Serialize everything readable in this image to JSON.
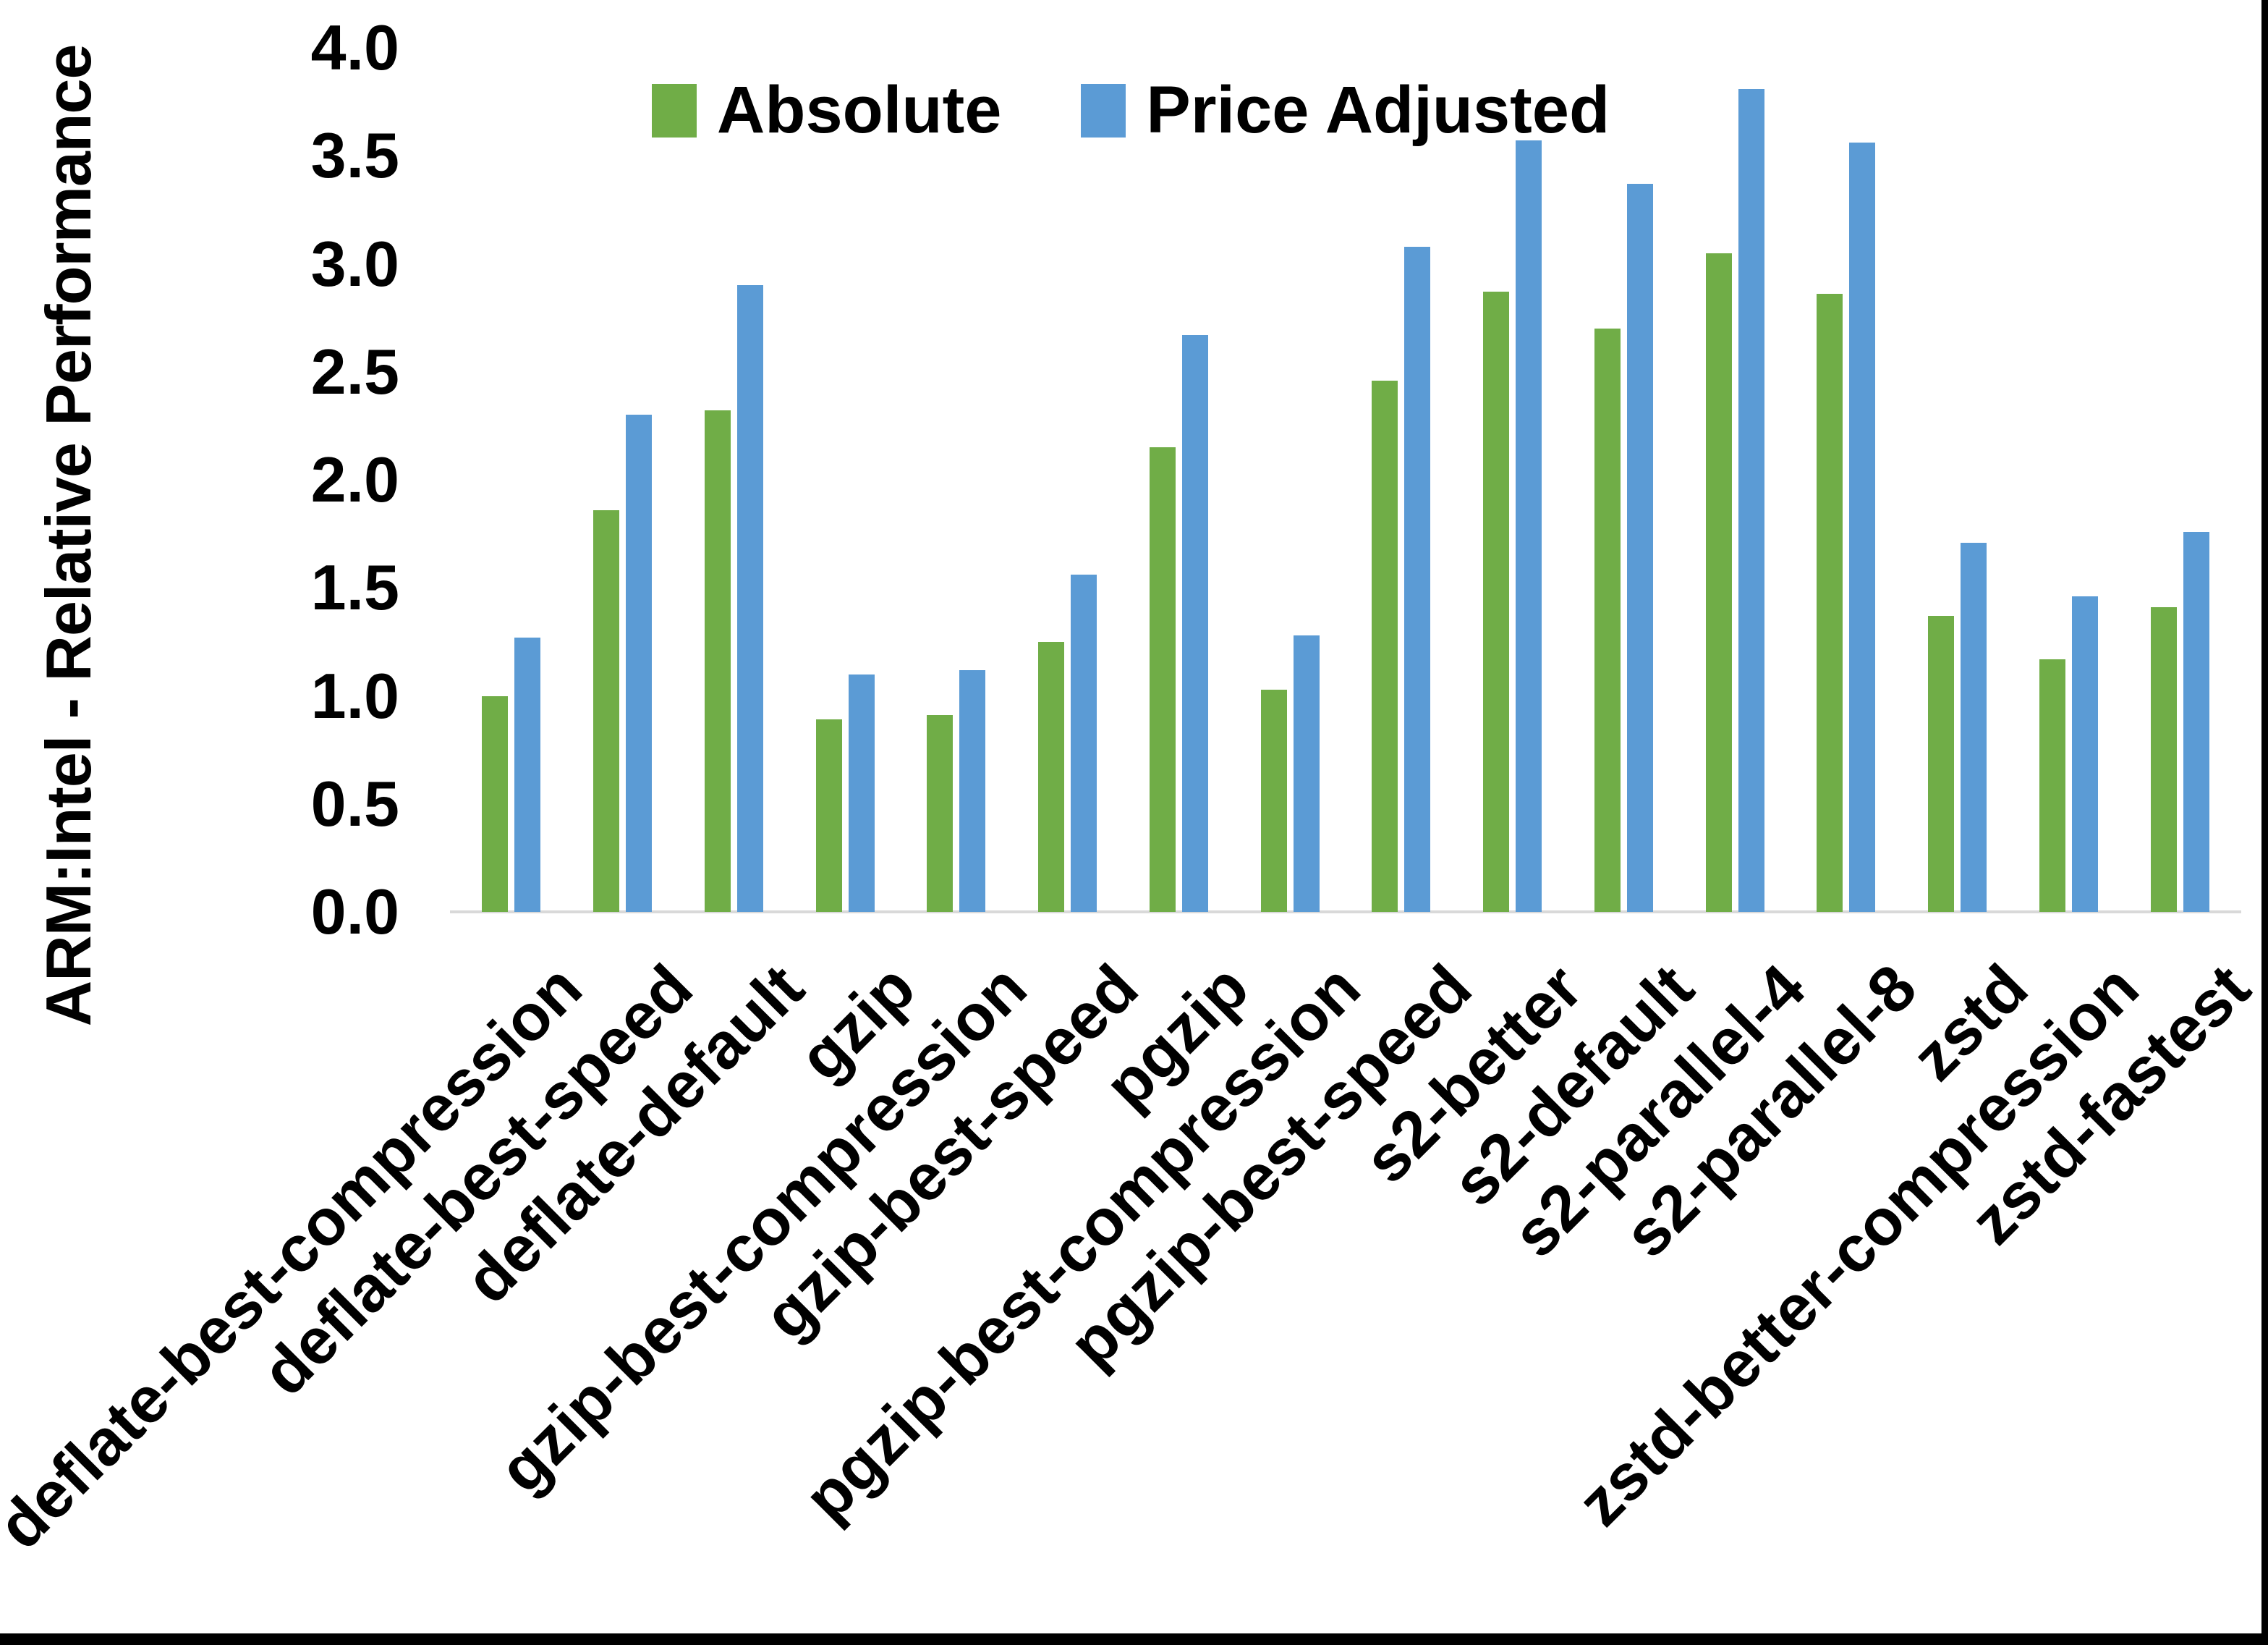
{
  "page": {
    "background": "#ffffff",
    "border_color": "#000000"
  },
  "chart_data": {
    "type": "bar",
    "title": "",
    "xlabel": "",
    "ylabel": "ARM:Intel - Relative Performance",
    "ylim": [
      0.0,
      4.0
    ],
    "ytick_step": 0.5,
    "yticks": [
      "0.0",
      "0.5",
      "1.0",
      "1.5",
      "2.0",
      "2.5",
      "3.0",
      "3.5",
      "4.0"
    ],
    "grid": false,
    "legend_position": "top-center",
    "axis_line_color": "#d9d9d9",
    "categories": [
      "deflate-best-compression",
      "deflate-best-speed",
      "deflate-default",
      "gzip",
      "gzip-best-compression",
      "gzip-best-speed",
      "pgzip",
      "pgzip-best-compression",
      "pgzip-best-speed",
      "s2-better",
      "s2-default",
      "s2-parallel-4",
      "s2-parallel-8",
      "zstd",
      "zstd-better-compression",
      "zstd-fastest"
    ],
    "series": [
      {
        "name": "Absolute",
        "color": "#70AD47",
        "values": [
          1.0,
          1.86,
          2.32,
          0.89,
          0.91,
          1.25,
          2.15,
          1.03,
          2.46,
          2.87,
          2.7,
          3.05,
          2.86,
          1.37,
          1.17,
          1.41
        ]
      },
      {
        "name": "Price Adjusted",
        "color": "#5B9BD5",
        "values": [
          1.27,
          2.3,
          2.9,
          1.1,
          1.12,
          1.56,
          2.67,
          1.28,
          3.08,
          3.57,
          3.37,
          3.81,
          3.56,
          1.71,
          1.46,
          1.76
        ]
      }
    ]
  }
}
